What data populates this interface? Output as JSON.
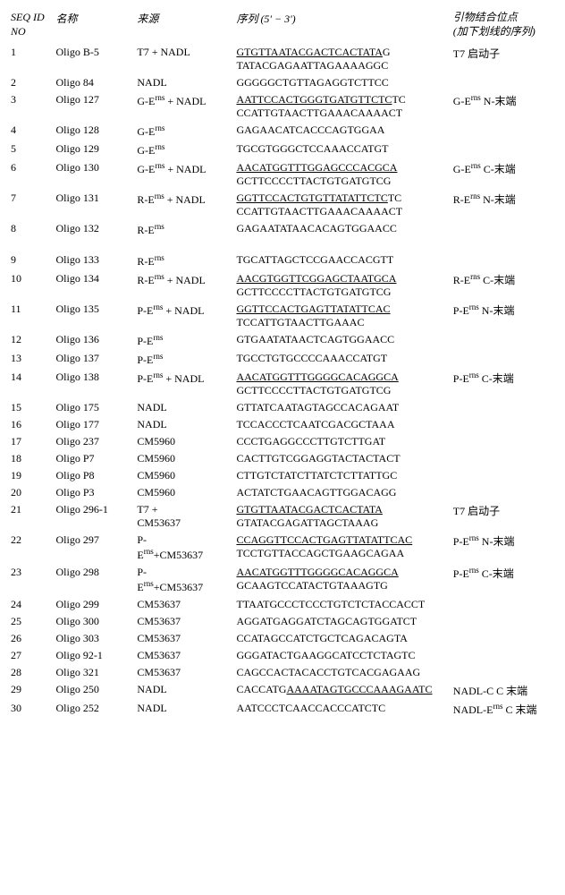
{
  "headers": {
    "seqid": "SEQ ID\nNO",
    "name": "名称",
    "source": "来源",
    "sequence": "序列 (5' − 3')",
    "binding": "引物结合位点\n(加下划线的序列)"
  },
  "rows": [
    {
      "id": "1",
      "name": "Oligo B-5",
      "source": "T7 + NADL",
      "seq_u": "GTGTTAATACGACTCACTATA",
      "seq_n": "G",
      "seq2": "TATACGAGAATTAGAAAAGGC",
      "binding": "T7 启动子"
    },
    {
      "id": "2",
      "name": "Oligo 84",
      "source": "NADL",
      "seq_u": "",
      "seq_n": "GGGGGCTGTTAGAGGTCTTCC",
      "seq2": "",
      "binding": ""
    },
    {
      "id": "3",
      "name": "Oligo 127",
      "source": "G-Eʳⁿˢ + NADL",
      "seq_u": "AATTCCACTGGGTGATGTTCTC",
      "seq_n": "TC",
      "seq2": "CCATTGTAACTTGAAACAAAACT",
      "binding": "G-Eʳⁿˢ N-末端"
    },
    {
      "id": "4",
      "name": "Oligo 128",
      "source": "G-Eʳⁿˢ",
      "seq_u": "",
      "seq_n": "GAGAACATCACCCAGTGGAA",
      "seq2": "",
      "binding": ""
    },
    {
      "id": "5",
      "name": "Oligo 129",
      "source": "G-Eʳⁿˢ",
      "seq_u": "",
      "seq_n": "TGCGTGGGCTCCAAACCATGT",
      "seq2": "",
      "binding": ""
    },
    {
      "id": "6",
      "name": "Oligo 130",
      "source": "G-Eʳⁿˢ + NADL",
      "seq_u": "AACATGGTTTGGAGCCCACGCA",
      "seq_n": "",
      "seq2": "GCTTCCCCTTACTGTGATGTCG",
      "binding": "G-Eʳⁿˢ C-末端"
    },
    {
      "id": "7",
      "name": "Oligo 131",
      "source": "R-Eʳⁿˢ + NADL",
      "seq_u": "GGTTCCACTGTGTTATATTCTC",
      "seq_n": "TC",
      "seq2": "CCATTGTAACTTGAAACAAAACT",
      "binding": "R-Eʳⁿˢ N-末端"
    },
    {
      "id": "8",
      "name": "Oligo 132",
      "source": "R-Eʳⁿˢ",
      "seq_u": "",
      "seq_n": "GAGAATATAACACAGTGGAACC",
      "seq2": "",
      "binding": ""
    },
    {
      "id": "9",
      "name": "Oligo 133",
      "source": "R-Eʳⁿˢ",
      "seq_u": "",
      "seq_n": "TGCATTAGCTCCGAACCACGTT",
      "seq2": "",
      "binding": ""
    },
    {
      "id": "10",
      "name": "Oligo 134",
      "source": "R-Eʳⁿˢ + NADL",
      "seq_u": "AACGTGGTTCGGAGCTAATGCA",
      "seq_n": "",
      "seq2": "GCTTCCCCTTACTGTGATGTCG",
      "binding": "R-Eʳⁿˢ C-末端"
    },
    {
      "id": "11",
      "name": "Oligo 135",
      "source": "P-Eʳⁿˢ + NADL",
      "seq_u": "GGTTCCACTGAGTTATATTCAC",
      "seq_n": "",
      "seq2": "TCCATTGTAACTTGAAAC",
      "binding": "P-Eʳⁿˢ N-末端"
    },
    {
      "id": "12",
      "name": "Oligo 136",
      "source": "P-Eʳⁿˢ",
      "seq_u": "",
      "seq_n": "GTGAATATAACTCAGTGGAACC",
      "seq2": "",
      "binding": ""
    },
    {
      "id": "13",
      "name": "Oligo 137",
      "source": "P-Eʳⁿˢ",
      "seq_u": "",
      "seq_n": "TGCCTGTGCCCCAAACCATGT",
      "seq2": "",
      "binding": ""
    },
    {
      "id": "14",
      "name": "Oligo 138",
      "source": "P-Eʳⁿˢ + NADL",
      "seq_u": "AACATGGTTTGGGGCACAGGCA",
      "seq_n": "",
      "seq2": "GCTTCCCCTTACTGTGATGTCG",
      "binding": "P-Eʳⁿˢ C-末端"
    },
    {
      "id": "15",
      "name": "Oligo 175",
      "source": "NADL",
      "seq_u": "",
      "seq_n": "GTTATCAATAGTAGCCACAGAAT",
      "seq2": "",
      "binding": ""
    },
    {
      "id": "16",
      "name": "Oligo 177",
      "source": "NADL",
      "seq_u": "",
      "seq_n": "TCCACCCTCAATCGACGCTAAA",
      "seq2": "",
      "binding": ""
    },
    {
      "id": "17",
      "name": "Oligo 237",
      "source": "CM5960",
      "seq_u": "",
      "seq_n": "CCCTGAGGCCCTTGTCTTGAT",
      "seq2": "",
      "binding": ""
    },
    {
      "id": "18",
      "name": "Oligo P7",
      "source": "CM5960",
      "seq_u": "",
      "seq_n": "CACTTGTCGGAGGTACTACTACT",
      "seq2": "",
      "binding": ""
    },
    {
      "id": "19",
      "name": "Oligo P8",
      "source": "CM5960",
      "seq_u": "",
      "seq_n": "CTTGTCTATCTTATCTCTTATTGC",
      "seq2": "",
      "binding": ""
    },
    {
      "id": "20",
      "name": "Oligo P3",
      "source": "CM5960",
      "seq_u": "",
      "seq_n": "ACTATCTGAACAGTTGGACAGG",
      "seq2": "",
      "binding": ""
    },
    {
      "id": "21",
      "name": "Oligo 296-1",
      "source": "T7 +",
      "source2": "CM53637",
      "seq_u": "GTGTTAATACGACTCACTATA",
      "seq_n": "",
      "seq2": "GTATACGAGATTAGCTAAAG",
      "binding": "T7 启动子"
    },
    {
      "id": "22",
      "name": "Oligo 297",
      "source": "P-",
      "source2": "Eʳⁿˢ+CM53637",
      "seq_u": "CCAGGTTCCACTGAGTTATATTCAC",
      "seq_n": "",
      "seq2": "TCCTGTTACCAGCTGAAGCAGAA",
      "binding": "P-Eʳⁿˢ N-末端"
    },
    {
      "id": "23",
      "name": "Oligo 298",
      "source": "P-",
      "source2": "Eʳⁿˢ+CM53637",
      "seq_u": "AACATGGTTTGGGGCACAGGCA",
      "seq_n": "",
      "seq2": "GCAAGTCCATACTGTAAAGTG",
      "binding": "P-Eʳⁿˢ C-末端"
    },
    {
      "id": "24",
      "name": "Oligo 299",
      "source": "CM53637",
      "seq_u": "",
      "seq_n": "TTAATGCCCTCCCTGTCTCTACCACCT",
      "seq2": "",
      "binding": ""
    },
    {
      "id": "25",
      "name": "Oligo 300",
      "source": "CM53637",
      "seq_u": "",
      "seq_n": "AGGATGAGGATCTAGCAGTGGATCT",
      "seq2": "",
      "binding": ""
    },
    {
      "id": "26",
      "name": "Oligo 303",
      "source": "CM53637",
      "seq_u": "",
      "seq_n": "CCATAGCCATCTGCTCAGACAGTA",
      "seq2": "",
      "binding": ""
    },
    {
      "id": "27",
      "name": "Oligo 92-1",
      "source": "CM53637",
      "seq_u": "",
      "seq_n": "GGGATACTGAAGGCATCCTCTAGTC",
      "seq2": "",
      "binding": ""
    },
    {
      "id": "28",
      "name": "Oligo 321",
      "source": "CM53637",
      "seq_u": "",
      "seq_n": "CAGCCACTACACCTGTCACGAGAAG",
      "seq2": "",
      "binding": ""
    },
    {
      "id": "29",
      "name": "Oligo 250",
      "source": "NADL",
      "seq_u": "",
      "seq_n": "CACCATG",
      "seq_mid_u": "AAAATAGTGCCCAAAGAATC",
      "binding": "NADL-C C 末端"
    },
    {
      "id": "30",
      "name": "Oligo 252",
      "source": "NADL",
      "seq_u": "",
      "seq_n": "AATCCCTCAACCACCCATCTC",
      "seq2": "",
      "binding": "NADL-Eʳⁿˢ C 末端"
    }
  ]
}
